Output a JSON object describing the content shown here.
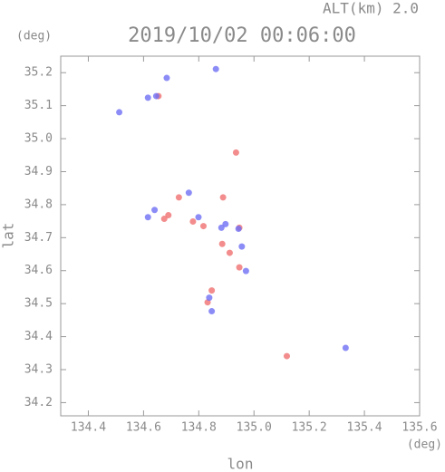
{
  "chart_data": {
    "type": "scatter",
    "title": "2019/10/02 00:06:00",
    "subtitle": "ALT(km) 2.0",
    "x_label": "lon",
    "x_unit": "(deg)",
    "y_label": "lat",
    "y_unit": "(deg)",
    "xlim": [
      134.3,
      135.6
    ],
    "ylim": [
      34.16,
      35.25
    ],
    "xticks": [
      134.4,
      134.6,
      134.8,
      {
        "value": 135.0,
        "label": "135.0"
      },
      135.2,
      135.4,
      135.6
    ],
    "yticks": [
      34.2,
      34.3,
      34.4,
      34.5,
      34.6,
      34.7,
      34.8,
      34.9,
      {
        "value": 35.0,
        "label": "35.0"
      },
      35.1,
      35.2
    ],
    "series": [
      {
        "color": "#f07070",
        "x": [
          134.654,
          134.935,
          134.888,
          134.728,
          134.69,
          134.817,
          134.885,
          134.912,
          134.947,
          134.847,
          134.832,
          135.119,
          134.675,
          134.947,
          134.779
        ],
        "y": [
          35.129,
          34.958,
          34.822,
          34.822,
          34.768,
          34.735,
          34.681,
          34.654,
          34.61,
          34.54,
          34.504,
          34.341,
          34.757,
          34.73,
          34.749
        ]
      },
      {
        "color": "#6f6ff5",
        "x": [
          134.646,
          134.684,
          134.616,
          134.862,
          134.764,
          134.616,
          134.799,
          134.897,
          134.956,
          134.971,
          134.838,
          134.847,
          135.332,
          134.882,
          134.64,
          134.944,
          134.512
        ],
        "y": [
          35.129,
          35.184,
          35.124,
          35.211,
          34.836,
          34.762,
          34.762,
          34.741,
          34.673,
          34.599,
          34.518,
          34.477,
          34.366,
          34.73,
          34.784,
          34.727,
          35.08
        ]
      }
    ]
  }
}
